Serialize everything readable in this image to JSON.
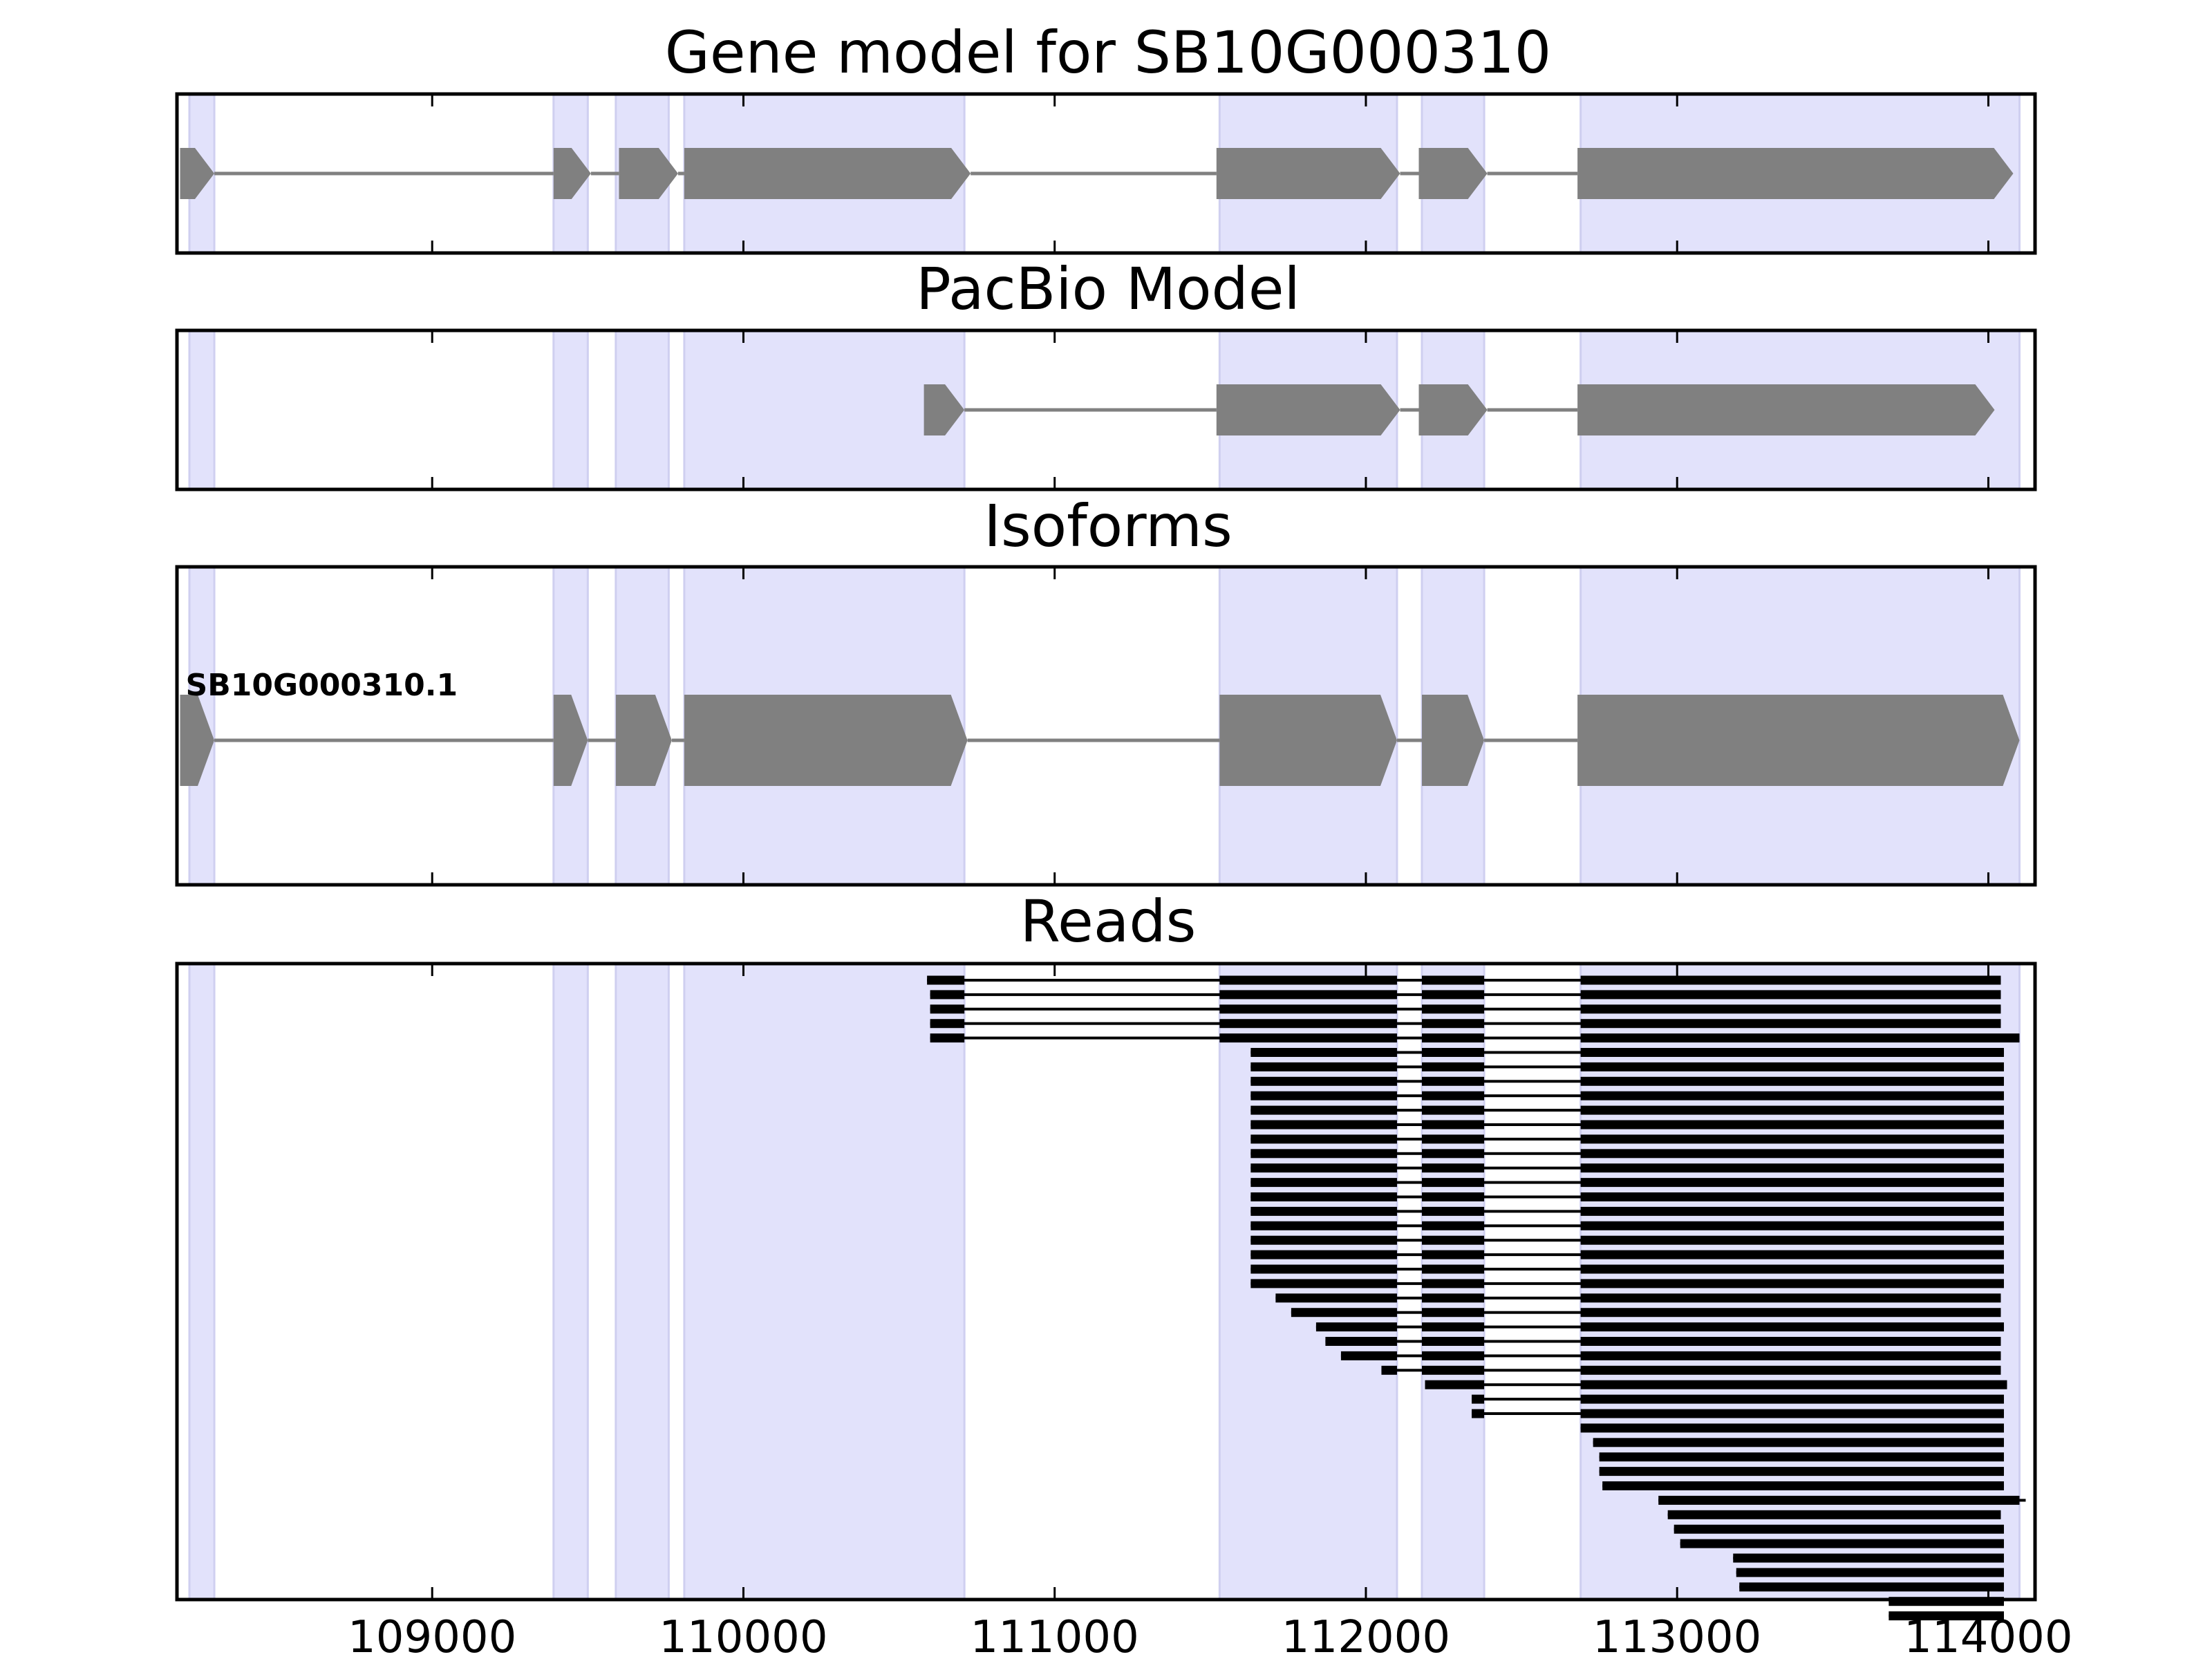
{
  "colors": {
    "exon": "#808080",
    "intron": "#808080",
    "read": "#000000",
    "band": "#e2e2fb",
    "band_edge": "#cfcff0",
    "frame": "#000000"
  },
  "chart_data": {
    "type": "gene-model",
    "x_range": [
      108180,
      114150
    ],
    "x_ticks": [
      109000,
      110000,
      111000,
      112000,
      113000,
      114000
    ],
    "x_tick_labels": [
      "109000",
      "110000",
      "111000",
      "112000",
      "113000",
      "114000"
    ],
    "exon_bands": [
      [
        108220,
        108300
      ],
      [
        109390,
        109500
      ],
      [
        109590,
        109760
      ],
      [
        109810,
        110710
      ],
      [
        111530,
        112100
      ],
      [
        112180,
        112380
      ],
      [
        112690,
        114100
      ]
    ],
    "panels": [
      {
        "title": "Gene model for SB10G000310",
        "strand": "+",
        "models": [
          {
            "label": "",
            "exons": [
              [
                108190,
                108300
              ],
              [
                109390,
                109510
              ],
              [
                109600,
                109790
              ],
              [
                109810,
                110730
              ],
              [
                111520,
                112110
              ],
              [
                112170,
                112390
              ],
              [
                112680,
                114080
              ]
            ]
          }
        ]
      },
      {
        "title": "PacBio Model",
        "strand": "+",
        "models": [
          {
            "label": "",
            "exons": [
              [
                110580,
                110710
              ],
              [
                111520,
                112110
              ],
              [
                112170,
                112390
              ],
              [
                112680,
                114020
              ]
            ]
          }
        ]
      },
      {
        "title": "Isoforms",
        "strand": "+",
        "models": [
          {
            "label": "SB10G000310.1",
            "exons": [
              [
                108190,
                108300
              ],
              [
                109390,
                109500
              ],
              [
                109590,
                109770
              ],
              [
                109810,
                110720
              ],
              [
                111530,
                112100
              ],
              [
                112180,
                112380
              ],
              [
                112680,
                114100
              ]
            ]
          }
        ]
      },
      {
        "title": "Reads",
        "reads": [
          {
            "s": 110590,
            "e": 114040
          },
          {
            "s": 110600,
            "e": 114040
          },
          {
            "s": 110600,
            "e": 114040
          },
          {
            "s": 110600,
            "e": 114040
          },
          {
            "s": 110600,
            "e": 114100
          },
          {
            "s": 111630,
            "e": 114050
          },
          {
            "s": 111630,
            "e": 114050
          },
          {
            "s": 111630,
            "e": 114050
          },
          {
            "s": 111630,
            "e": 114050
          },
          {
            "s": 111630,
            "e": 114050
          },
          {
            "s": 111630,
            "e": 114050
          },
          {
            "s": 111630,
            "e": 114050
          },
          {
            "s": 111630,
            "e": 114050
          },
          {
            "s": 111630,
            "e": 114050
          },
          {
            "s": 111630,
            "e": 114050
          },
          {
            "s": 111630,
            "e": 114050
          },
          {
            "s": 111630,
            "e": 114050
          },
          {
            "s": 111630,
            "e": 114050
          },
          {
            "s": 111630,
            "e": 114050
          },
          {
            "s": 111630,
            "e": 114050
          },
          {
            "s": 111630,
            "e": 114050
          },
          {
            "s": 111630,
            "e": 114050
          },
          {
            "s": 111710,
            "e": 114040
          },
          {
            "s": 111760,
            "e": 114040
          },
          {
            "s": 111840,
            "e": 114050
          },
          {
            "s": 111870,
            "e": 114040
          },
          {
            "s": 111920,
            "e": 114040
          },
          {
            "s": 112050,
            "e": 114040
          },
          {
            "s": 112190,
            "e": 114060
          },
          {
            "s": 112340,
            "e": 114050
          },
          {
            "s": 112340,
            "e": 114050
          },
          {
            "s": 112690,
            "e": 114050
          },
          {
            "s": 112730,
            "e": 114050
          },
          {
            "s": 112750,
            "e": 114050
          },
          {
            "s": 112750,
            "e": 114050
          },
          {
            "s": 112760,
            "e": 114050
          },
          {
            "s": 112940,
            "e": 114120
          },
          {
            "s": 112970,
            "e": 114040
          },
          {
            "s": 112990,
            "e": 114050
          },
          {
            "s": 113010,
            "e": 114050
          },
          {
            "s": 113180,
            "e": 114050
          },
          {
            "s": 113190,
            "e": 114050
          },
          {
            "s": 113200,
            "e": 114050
          },
          {
            "s": 113680,
            "e": 114050
          },
          {
            "s": 113680,
            "e": 114050
          }
        ]
      }
    ]
  }
}
